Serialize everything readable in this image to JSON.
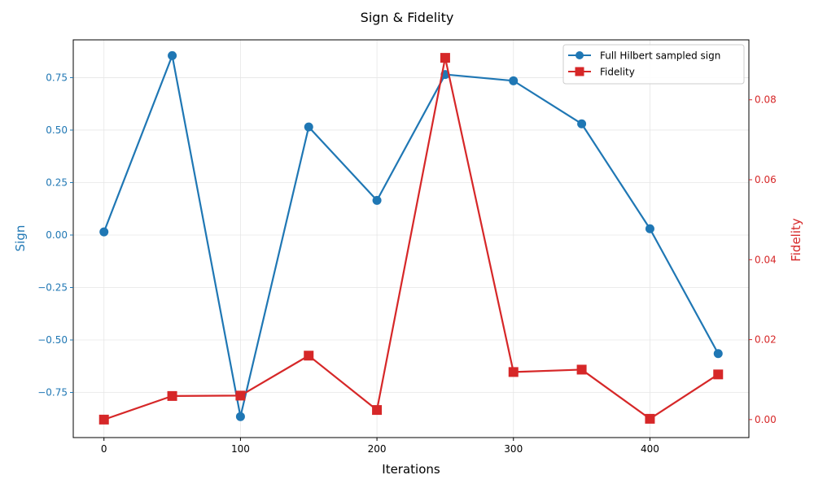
{
  "chart_data": {
    "type": "line",
    "title": "Sign & Fidelity",
    "xlabel": "Iterations",
    "ylabel_left": "Sign",
    "ylabel_right": "Fidelity",
    "xlim": [
      -22.5,
      472.5
    ],
    "ylim_left": [
      -0.965,
      0.93
    ],
    "ylim_right": [
      -0.0045,
      0.095
    ],
    "grid": true,
    "legend_placement": "top-right",
    "x": [
      0,
      50,
      100,
      150,
      200,
      250,
      300,
      350,
      400,
      450
    ],
    "x_ticks": [
      0,
      100,
      200,
      300,
      400
    ],
    "x_tick_labels": [
      "0",
      "100",
      "200",
      "300",
      "400"
    ],
    "y_left_ticks": [
      -0.75,
      -0.5,
      -0.25,
      0.0,
      0.25,
      0.5,
      0.75
    ],
    "y_left_tick_labels": [
      "−0.75",
      "−0.50",
      "−0.25",
      "0.00",
      "0.25",
      "0.50",
      "0.75"
    ],
    "y_right_ticks": [
      0.0,
      0.02,
      0.04,
      0.06,
      0.08
    ],
    "y_right_tick_labels": [
      "0.00",
      "0.02",
      "0.04",
      "0.06",
      "0.08"
    ],
    "series": [
      {
        "name": "Full Hilbert sampled sign",
        "axis": "left",
        "color": "#1f77b4",
        "marker": "circle",
        "values": [
          0.015,
          0.855,
          -0.865,
          0.515,
          0.165,
          0.765,
          0.735,
          0.53,
          0.03,
          -0.565
        ]
      },
      {
        "name": "Fidelity",
        "axis": "right",
        "color": "#d62728",
        "marker": "square",
        "values": [
          0.0,
          0.0059,
          0.006,
          0.016,
          0.0024,
          0.0905,
          0.0119,
          0.0125,
          0.0002,
          0.0113
        ]
      }
    ]
  }
}
